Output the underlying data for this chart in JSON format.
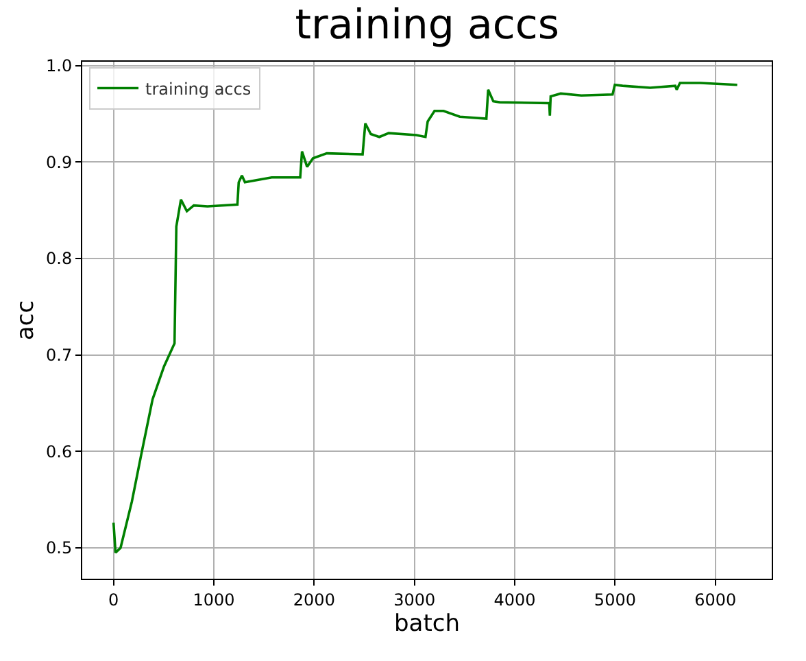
{
  "chart_data": {
    "type": "line",
    "title": "training accs",
    "xlabel": "batch",
    "ylabel": "acc",
    "x": [
      0,
      20,
      70,
      183,
      275,
      389,
      503,
      608,
      626,
      672,
      731,
      800,
      937,
      1235,
      1248,
      1280,
      1310,
      1577,
      1861,
      1879,
      1930,
      1989,
      2126,
      2483,
      2510,
      2565,
      2650,
      2743,
      3018,
      3110,
      3132,
      3200,
      3290,
      3452,
      3717,
      3735,
      3786,
      3850,
      4344,
      4350,
      4358,
      4458,
      4664,
      4975,
      4998,
      5075,
      5350,
      5600,
      5615,
      5647,
      5850,
      6218
    ],
    "series": [
      {
        "name": "training accs",
        "color": "#008000",
        "values": [
          0.526,
          0.495,
          0.5,
          0.548,
          0.596,
          0.654,
          0.688,
          0.712,
          0.833,
          0.861,
          0.849,
          0.855,
          0.854,
          0.856,
          0.879,
          0.886,
          0.879,
          0.884,
          0.884,
          0.911,
          0.895,
          0.904,
          0.909,
          0.908,
          0.94,
          0.929,
          0.926,
          0.93,
          0.928,
          0.926,
          0.942,
          0.953,
          0.953,
          0.947,
          0.945,
          0.975,
          0.963,
          0.962,
          0.961,
          0.948,
          0.968,
          0.971,
          0.969,
          0.97,
          0.98,
          0.979,
          0.977,
          0.979,
          0.975,
          0.982,
          0.982,
          0.98
        ]
      }
    ],
    "xlim": [
      -312,
      6562
    ],
    "ylim": [
      0.468,
      1.004
    ],
    "xticks": [
      0,
      1000,
      2000,
      3000,
      4000,
      5000,
      6000
    ],
    "yticks": [
      {
        "value": 0.5,
        "label": "0.5"
      },
      {
        "value": 0.6,
        "label": "0.6"
      },
      {
        "value": 0.7,
        "label": "0.7"
      },
      {
        "value": 0.8,
        "label": "0.8"
      },
      {
        "value": 0.9,
        "label": "0.9"
      },
      {
        "value": 1.0,
        "label": "1.0"
      }
    ],
    "grid": true,
    "legend": "top left",
    "marker": "none",
    "line_style": "solid"
  }
}
